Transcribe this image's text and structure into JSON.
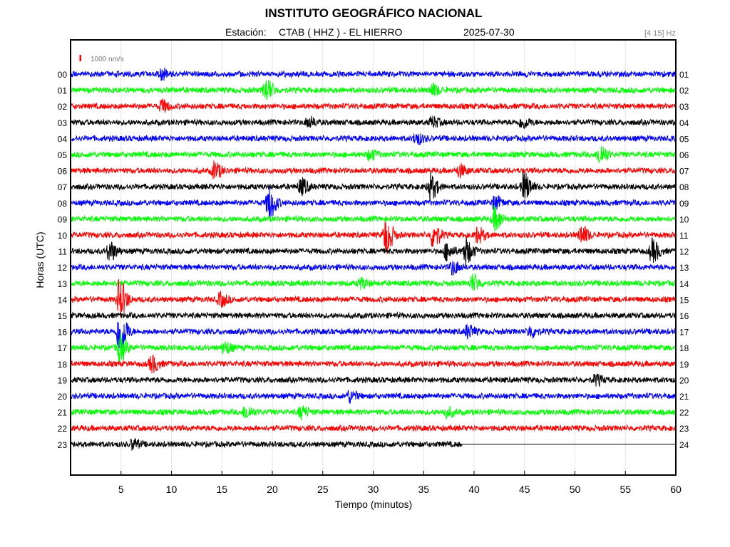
{
  "header": {
    "title": "INSTITUTO GEOGRÁFICO NACIONAL",
    "station_label": "Estación:",
    "station": "CTAB ( HHZ ) - EL HIERRO",
    "date": "2025-07-30",
    "filter": "[4 15] Hz"
  },
  "chart_data": {
    "type": "line",
    "subtype": "helicorder",
    "title": "INSTITUTO GEOGRÁFICO NACIONAL",
    "xlabel": "Tiempo (minutos)",
    "ylabel": "Horas (UTC)",
    "xlim": [
      0,
      60
    ],
    "x_ticks": [
      5,
      10,
      15,
      20,
      25,
      30,
      35,
      40,
      45,
      50,
      55,
      60
    ],
    "left_hour_labels": [
      "00",
      "01",
      "02",
      "03",
      "04",
      "05",
      "06",
      "07",
      "08",
      "09",
      "10",
      "11",
      "12",
      "13",
      "14",
      "15",
      "16",
      "17",
      "18",
      "19",
      "20",
      "21",
      "22",
      "23"
    ],
    "right_hour_labels": [
      "01",
      "02",
      "03",
      "04",
      "05",
      "06",
      "07",
      "08",
      "09",
      "10",
      "11",
      "12",
      "13",
      "14",
      "15",
      "16",
      "17",
      "18",
      "19",
      "20",
      "21",
      "22",
      "23",
      "24"
    ],
    "scale_label": "1000 nm/s",
    "scale_color": "#ff0000",
    "grid": true,
    "trace_colors": [
      "#0000ff",
      "#00ff00",
      "#ff0000",
      "#000000"
    ],
    "last_trace_end_minute": 38.8,
    "events": [
      {
        "hour": 0,
        "minute": 9.0,
        "amplitude": 0.6
      },
      {
        "hour": 1,
        "minute": 19.3,
        "amplitude": 1.4
      },
      {
        "hour": 1,
        "minute": 35.8,
        "amplitude": 0.7
      },
      {
        "hour": 2,
        "minute": 9.0,
        "amplitude": 0.7
      },
      {
        "hour": 3,
        "minute": 23.5,
        "amplitude": 0.6
      },
      {
        "hour": 3,
        "minute": 35.8,
        "amplitude": 0.6
      },
      {
        "hour": 3,
        "minute": 44.7,
        "amplitude": 0.7
      },
      {
        "hour": 4,
        "minute": 34.2,
        "amplitude": 0.7
      },
      {
        "hour": 5,
        "minute": 52.4,
        "amplitude": 1.3
      },
      {
        "hour": 5,
        "minute": 29.6,
        "amplitude": 0.6
      },
      {
        "hour": 6,
        "minute": 14.2,
        "amplitude": 1.0
      },
      {
        "hour": 6,
        "minute": 38.5,
        "amplitude": 0.7
      },
      {
        "hour": 7,
        "minute": 22.8,
        "amplitude": 1.0
      },
      {
        "hour": 7,
        "minute": 35.6,
        "amplitude": 1.6
      },
      {
        "hour": 7,
        "minute": 44.9,
        "amplitude": 1.7
      },
      {
        "hour": 8,
        "minute": 19.6,
        "amplitude": 2.0
      },
      {
        "hour": 8,
        "minute": 42.0,
        "amplitude": 0.8
      },
      {
        "hour": 9,
        "minute": 42.0,
        "amplitude": 1.4
      },
      {
        "hour": 10,
        "minute": 31.2,
        "amplitude": 2.2
      },
      {
        "hour": 10,
        "minute": 35.9,
        "amplitude": 1.5
      },
      {
        "hour": 10,
        "minute": 40.3,
        "amplitude": 0.9
      },
      {
        "hour": 10,
        "minute": 50.6,
        "amplitude": 1.1
      },
      {
        "hour": 11,
        "minute": 3.8,
        "amplitude": 1.2
      },
      {
        "hour": 11,
        "minute": 37.2,
        "amplitude": 1.0
      },
      {
        "hour": 11,
        "minute": 39.1,
        "amplitude": 1.6
      },
      {
        "hour": 11,
        "minute": 57.6,
        "amplitude": 1.4
      },
      {
        "hour": 12,
        "minute": 37.8,
        "amplitude": 0.8
      },
      {
        "hour": 13,
        "minute": 39.8,
        "amplitude": 1.0
      },
      {
        "hour": 13,
        "minute": 28.7,
        "amplitude": 0.6
      },
      {
        "hour": 14,
        "minute": 14.8,
        "amplitude": 0.8
      },
      {
        "hour": 14,
        "minute": 4.8,
        "amplitude": 2.4
      },
      {
        "hour": 16,
        "minute": 4.8,
        "amplitude": 3.0
      },
      {
        "hour": 16,
        "minute": 39.3,
        "amplitude": 0.8
      },
      {
        "hour": 16,
        "minute": 45.5,
        "amplitude": 0.7
      },
      {
        "hour": 17,
        "minute": 4.8,
        "amplitude": 1.6
      },
      {
        "hour": 17,
        "minute": 15.2,
        "amplitude": 0.7
      },
      {
        "hour": 18,
        "minute": 8.0,
        "amplitude": 1.0
      },
      {
        "hour": 19,
        "minute": 52.0,
        "amplitude": 0.6
      },
      {
        "hour": 20,
        "minute": 27.6,
        "amplitude": 0.7
      },
      {
        "hour": 21,
        "minute": 17.3,
        "amplitude": 0.8
      },
      {
        "hour": 21,
        "minute": 22.8,
        "amplitude": 0.7
      },
      {
        "hour": 21,
        "minute": 37.2,
        "amplitude": 0.6
      },
      {
        "hour": 23,
        "minute": 6.1,
        "amplitude": 0.6
      }
    ]
  }
}
